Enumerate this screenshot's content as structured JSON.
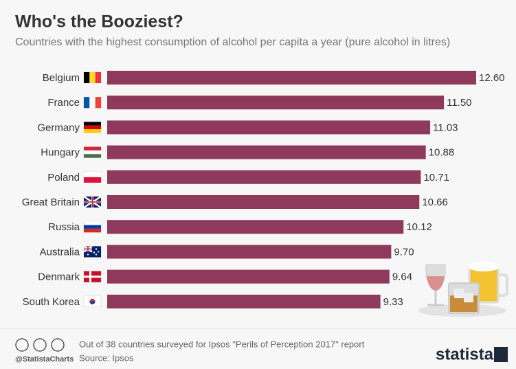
{
  "chart_data": {
    "type": "bar",
    "orientation": "horizontal",
    "title": "Who's the Booziest?",
    "subtitle": "Countries with the highest consumption of alcohol per capita a year (pure alcohol in litres)",
    "categories": [
      "Belgium",
      "France",
      "Germany",
      "Hungary",
      "Poland",
      "Great Britain",
      "Russia",
      "Australia",
      "Denmark",
      "South Korea"
    ],
    "values": [
      12.6,
      11.5,
      11.03,
      10.88,
      10.71,
      10.66,
      10.12,
      9.7,
      9.64,
      9.33
    ],
    "value_labels": [
      "12.60",
      "11.50",
      "11.03",
      "10.88",
      "10.71",
      "10.66",
      "10.12",
      "9.70",
      "9.64",
      "9.33"
    ],
    "color": "#8f3a5c",
    "note": "Out of 38 countries surveyed for Ipsos \"Perils of Perception 2017\" report",
    "source": "Source: Ipsos",
    "handle": "@StatistaCharts",
    "brand": "statista"
  }
}
